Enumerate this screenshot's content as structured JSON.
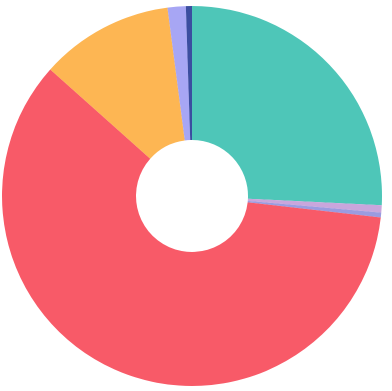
{
  "chart_data": {
    "type": "pie",
    "variant": "donut",
    "title": "",
    "legend": "none",
    "series": [
      {
        "values": [
          25.0,
          0.6,
          0.4,
          58.0,
          11.0,
          1.5,
          0.5
        ],
        "colors": [
          "#4ec6b8",
          "#c9a6dc",
          "#9b9be0",
          "#f85a68",
          "#fdb653",
          "#a7a6f4",
          "#3b4ea0"
        ]
      }
    ],
    "start_angle_deg": 0,
    "direction": "clockwise"
  }
}
